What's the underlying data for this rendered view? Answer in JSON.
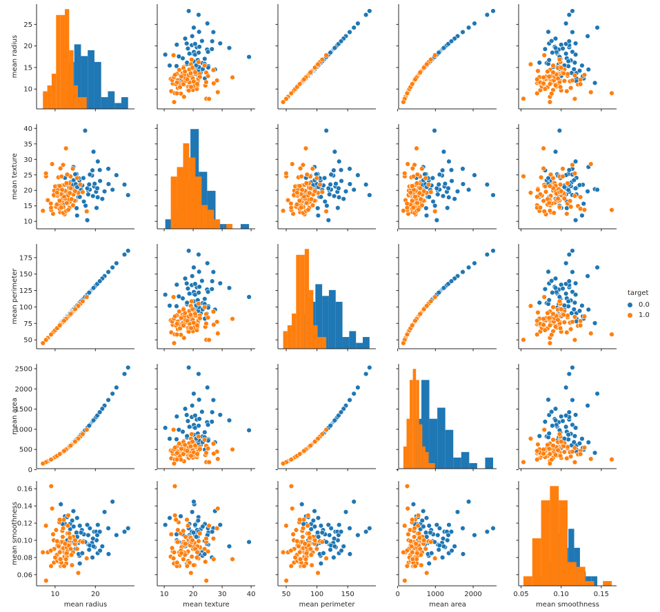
{
  "chart_data": {
    "type": "scatter",
    "kind": "pairplot",
    "grid": false,
    "hue": "target",
    "legend": {
      "title": "target",
      "placement": "right",
      "entries": [
        {
          "label": "0.0",
          "color": "#1f77b4"
        },
        {
          "label": "1.0",
          "color": "#ff7f0e"
        }
      ]
    },
    "diagonal": "histogram",
    "variables": [
      {
        "label": "mean radius",
        "range": [
          5.4,
          29.7
        ],
        "ticks": [
          10,
          15,
          20,
          25
        ],
        "xticks": [
          10,
          20
        ],
        "tick_labels": [
          "10",
          "15",
          "20",
          "25"
        ],
        "xtick_labels": [
          "10",
          "20"
        ]
      },
      {
        "label": "mean texture",
        "range": [
          7.6,
          41.4
        ],
        "ticks": [
          10,
          15,
          20,
          25,
          30,
          35,
          40
        ],
        "xticks": [
          10,
          20,
          30,
          40
        ],
        "tick_labels": [
          "10",
          "15",
          "20",
          "25",
          "30",
          "35",
          "40"
        ],
        "xtick_labels": [
          "10",
          "20",
          "30",
          "40"
        ]
      },
      {
        "label": "mean perimeter",
        "range": [
          36.5,
          195.8
        ],
        "ticks": [
          50,
          75,
          100,
          125,
          150,
          175
        ],
        "xticks": [
          50,
          100,
          150
        ],
        "tick_labels": [
          "50",
          "75",
          "100",
          "125",
          "150",
          "175"
        ],
        "xtick_labels": [
          "50",
          "100",
          "150"
        ]
      },
      {
        "label": "mean area",
        "range": [
          25,
          2620
        ],
        "ticks": [
          0,
          500,
          1000,
          1500,
          2000,
          2500
        ],
        "xticks": [
          0,
          1000,
          2000
        ],
        "tick_labels": [
          "0",
          "500",
          "1000",
          "1500",
          "2000",
          "2500"
        ],
        "xtick_labels": [
          "0",
          "1000",
          "2000"
        ]
      },
      {
        "label": "mean smoothness",
        "range": [
          0.047,
          0.169
        ],
        "ticks": [
          0.06,
          0.08,
          0.1,
          0.12,
          0.14,
          0.16
        ],
        "xticks": [
          0.05,
          0.1,
          0.15
        ],
        "tick_labels": [
          "0.06",
          "0.08",
          "0.10",
          "0.12",
          "0.14",
          "0.16"
        ],
        "xtick_labels": [
          "0.05",
          "0.10",
          "0.15"
        ]
      }
    ],
    "series": [
      {
        "name": "0.0",
        "color": "#1f77b4",
        "rows": [
          [
            17.99,
            10.38,
            118.7,
            1036,
            0.118
          ],
          [
            20.57,
            17.77,
            135.8,
            1354,
            0.085
          ],
          [
            19.69,
            21.25,
            130.0,
            1241,
            0.11
          ],
          [
            11.42,
            20.38,
            75.4,
            417,
            0.142
          ],
          [
            20.29,
            14.34,
            133.9,
            1317,
            0.1
          ],
          [
            12.45,
            15.7,
            82.2,
            496,
            0.128
          ],
          [
            18.25,
            19.98,
            120.5,
            1066,
            0.095
          ],
          [
            13.71,
            20.83,
            90.5,
            601,
            0.119
          ],
          [
            13.0,
            21.82,
            85.8,
            541,
            0.127
          ],
          [
            12.46,
            24.04,
            82.2,
            497,
            0.119
          ],
          [
            16.02,
            23.24,
            105.7,
            821,
            0.082
          ],
          [
            15.78,
            17.89,
            104.1,
            797,
            0.097
          ],
          [
            19.17,
            24.8,
            126.5,
            1176,
            0.097
          ],
          [
            15.85,
            23.95,
            104.6,
            804,
            0.084
          ],
          [
            13.73,
            22.61,
            90.6,
            603,
            0.113
          ],
          [
            14.54,
            27.54,
            96.0,
            677,
            0.134
          ],
          [
            14.68,
            20.13,
            96.9,
            690,
            0.098
          ],
          [
            16.13,
            20.68,
            106.5,
            833,
            0.117
          ],
          [
            19.81,
            22.15,
            130.7,
            1256,
            0.092
          ],
          [
            15.34,
            14.26,
            101.2,
            753,
            0.107
          ],
          [
            21.16,
            23.04,
            139.7,
            1433,
            0.088
          ],
          [
            16.65,
            21.38,
            109.9,
            887,
            0.112
          ],
          [
            17.14,
            16.4,
            113.1,
            940,
            0.107
          ],
          [
            14.58,
            21.53,
            96.2,
            680,
            0.104
          ],
          [
            18.61,
            20.25,
            122.8,
            1108,
            0.094
          ],
          [
            15.3,
            25.27,
            101.0,
            749,
            0.109
          ],
          [
            17.57,
            15.05,
            116.0,
            988,
            0.098
          ],
          [
            18.63,
            25.11,
            123.0,
            1111,
            0.114
          ],
          [
            11.84,
            18.7,
            78.1,
            449,
            0.119
          ],
          [
            17.02,
            23.98,
            112.3,
            927,
            0.099
          ],
          [
            19.27,
            26.47,
            127.2,
            1188,
            0.08
          ],
          [
            16.13,
            17.88,
            106.5,
            833,
            0.073
          ],
          [
            16.74,
            21.59,
            110.5,
            897,
            0.085
          ],
          [
            14.25,
            21.72,
            94.1,
            650,
            0.123
          ],
          [
            13.03,
            18.42,
            86.0,
            543,
            0.1
          ],
          [
            14.99,
            25.2,
            98.9,
            719,
            0.095
          ],
          [
            20.6,
            29.33,
            136.0,
            1358,
            0.118
          ],
          [
            25.22,
            24.91,
            166.5,
            2035,
            0.106
          ],
          [
            27.22,
            21.87,
            179.7,
            2371,
            0.11
          ],
          [
            28.11,
            18.47,
            185.5,
            2529,
            0.114
          ],
          [
            23.27,
            22.04,
            153.6,
            1733,
            0.084
          ],
          [
            24.25,
            20.2,
            160.1,
            1882,
            0.145
          ],
          [
            23.21,
            26.97,
            153.2,
            1724,
            0.114
          ],
          [
            22.27,
            19.67,
            147.0,
            1587,
            0.133
          ],
          [
            21.71,
            17.25,
            143.3,
            1508,
            0.093
          ],
          [
            20.18,
            19.54,
            133.2,
            1303,
            0.11
          ],
          [
            17.46,
            39.28,
            115.2,
            976,
            0.098
          ],
          [
            15.46,
            11.89,
            102.0,
            765,
            0.126
          ],
          [
            20.47,
            20.67,
            135.1,
            1341,
            0.106
          ],
          [
            18.22,
            18.7,
            120.3,
            1062,
            0.106
          ],
          [
            19.4,
            18.18,
            128.0,
            1204,
            0.102
          ],
          [
            16.46,
            20.11,
            108.6,
            867,
            0.109
          ],
          [
            15.1,
            22.02,
            99.7,
            730,
            0.09
          ],
          [
            21.09,
            26.57,
            139.2,
            1423,
            0.11
          ],
          [
            17.99,
            20.66,
            118.7,
            1036,
            0.118
          ],
          [
            14.6,
            23.29,
            96.4,
            682,
            0.116
          ],
          [
            15.5,
            21.08,
            102.3,
            769,
            0.104
          ],
          [
            18.45,
            21.91,
            121.8,
            1089,
            0.089
          ],
          [
            13.61,
            24.69,
            89.8,
            593,
            0.096
          ],
          [
            19.53,
            32.47,
            128.9,
            1221,
            0.093
          ]
        ]
      },
      {
        "name": "1.0",
        "color": "#ff7f0e",
        "rows": [
          [
            13.54,
            14.36,
            87.3,
            568,
            0.098
          ],
          [
            13.08,
            15.71,
            84.4,
            530,
            0.108
          ],
          [
            9.5,
            12.44,
            61.3,
            280,
            0.107
          ],
          [
            11.04,
            16.83,
            71.2,
            378,
            0.094
          ],
          [
            8.2,
            16.84,
            52.9,
            208,
            0.086
          ],
          [
            12.05,
            14.63,
            77.7,
            450,
            0.098
          ],
          [
            13.49,
            22.3,
            87.0,
            564,
            0.108
          ],
          [
            11.76,
            21.6,
            75.9,
            429,
            0.09
          ],
          [
            13.64,
            16.34,
            88.0,
            577,
            0.095
          ],
          [
            11.94,
            18.24,
            77.0,
            442,
            0.087
          ],
          [
            10.95,
            21.35,
            70.6,
            372,
            0.079
          ],
          [
            11.42,
            15.2,
            73.7,
            404,
            0.07
          ],
          [
            12.36,
            21.8,
            79.7,
            474,
            0.079
          ],
          [
            14.4,
            26.99,
            92.9,
            643,
            0.102
          ],
          [
            9.72,
            18.22,
            62.7,
            293,
            0.074
          ],
          [
            12.34,
            12.27,
            79.6,
            472,
            0.081
          ],
          [
            10.26,
            14.71,
            66.2,
            326,
            0.112
          ],
          [
            12.18,
            17.84,
            78.6,
            460,
            0.124
          ],
          [
            9.79,
            19.94,
            63.1,
            297,
            0.09
          ],
          [
            11.06,
            14.96,
            71.3,
            379,
            0.121
          ],
          [
            11.8,
            16.58,
            76.1,
            432,
            0.111
          ],
          [
            14.44,
            15.18,
            93.1,
            646,
            0.086
          ],
          [
            12.77,
            22.47,
            82.4,
            506,
            0.091
          ],
          [
            10.44,
            15.46,
            67.3,
            338,
            0.083
          ],
          [
            7.76,
            24.54,
            50.1,
            187,
            0.053
          ],
          [
            9.27,
            28.5,
            59.8,
            266,
            0.137
          ],
          [
            9.04,
            13.67,
            58.3,
            253,
            0.163
          ],
          [
            12.87,
            19.54,
            83.0,
            513,
            0.081
          ],
          [
            10.82,
            24.21,
            69.8,
            363,
            0.075
          ],
          [
            13.48,
            20.82,
            86.9,
            563,
            0.094
          ],
          [
            11.27,
            12.96,
            72.7,
            394,
            0.087
          ],
          [
            14.54,
            18.66,
            93.8,
            655,
            0.104
          ],
          [
            11.6,
            24.49,
            74.8,
            417,
            0.098
          ],
          [
            12.46,
            19.89,
            80.4,
            481,
            0.093
          ],
          [
            10.57,
            18.32,
            68.2,
            346,
            0.076
          ],
          [
            13.82,
            24.49,
            89.1,
            592,
            0.102
          ],
          [
            12.06,
            12.74,
            77.8,
            451,
            0.091
          ],
          [
            15.12,
            16.68,
            97.5,
            709,
            0.098
          ],
          [
            14.87,
            16.67,
            95.9,
            685,
            0.096
          ],
          [
            11.52,
            18.75,
            74.3,
            411,
            0.074
          ],
          [
            12.95,
            16.02,
            83.5,
            520,
            0.092
          ],
          [
            16.26,
            21.88,
            104.9,
            820,
            0.099
          ],
          [
            7.73,
            25.49,
            49.9,
            185,
            0.117
          ],
          [
            14.2,
            20.53,
            91.6,
            625,
            0.071
          ],
          [
            10.71,
            20.39,
            69.1,
            356,
            0.097
          ],
          [
            11.89,
            17.36,
            76.7,
            438,
            0.104
          ],
          [
            9.67,
            18.49,
            62.4,
            290,
            0.1
          ],
          [
            13.17,
            18.22,
            84.9,
            538,
            0.117
          ],
          [
            12.83,
            22.33,
            82.8,
            510,
            0.092
          ],
          [
            15.46,
            23.95,
            99.7,
            741,
            0.09
          ],
          [
            10.03,
            21.28,
            64.7,
            312,
            0.08
          ],
          [
            12.62,
            17.15,
            81.4,
            494,
            0.085
          ],
          [
            13.4,
            16.95,
            86.4,
            557,
            0.094
          ],
          [
            11.75,
            20.18,
            75.8,
            428,
            0.071
          ],
          [
            17.85,
            13.23,
            115.1,
            988,
            0.079
          ],
          [
            8.95,
            15.76,
            57.7,
            248,
            0.088
          ],
          [
            12.47,
            17.31,
            80.4,
            482,
            0.096
          ],
          [
            10.6,
            18.95,
            68.4,
            348,
            0.094
          ],
          [
            13.0,
            25.13,
            83.9,
            524,
            0.087
          ],
          [
            12.76,
            13.37,
            82.3,
            505,
            0.073
          ],
          [
            11.14,
            14.07,
            71.9,
            385,
            0.124
          ],
          [
            14.06,
            17.18,
            90.7,
            613,
            0.083
          ],
          [
            13.28,
            13.72,
            85.7,
            547,
            0.129
          ],
          [
            9.0,
            14.4,
            58.1,
            251,
            0.07
          ],
          [
            11.54,
            14.44,
            74.4,
            413,
            0.074
          ],
          [
            12.9,
            15.92,
            83.2,
            516,
            0.085
          ],
          [
            10.86,
            21.48,
            70.0,
            366,
            0.093
          ],
          [
            15.75,
            19.22,
            101.6,
            769,
            0.062
          ],
          [
            13.66,
            19.13,
            88.1,
            578,
            0.103
          ],
          [
            11.13,
            16.62,
            71.8,
            384,
            0.078
          ],
          [
            12.0,
            28.23,
            77.4,
            446,
            0.114
          ],
          [
            10.49,
            19.29,
            67.7,
            341,
            0.099
          ],
          [
            12.7,
            33.56,
            81.9,
            500,
            0.078
          ],
          [
            16.84,
            19.46,
            108.6,
            879,
            0.098
          ],
          [
            11.32,
            27.08,
            73.0,
            397,
            0.078
          ],
          [
            13.87,
            20.7,
            89.5,
            596,
            0.09
          ],
          [
            6.98,
            13.43,
            45.0,
            151,
            0.086
          ],
          [
            12.25,
            17.94,
            79.0,
            465,
            0.07
          ],
          [
            11.16,
            21.41,
            72.0,
            386,
            0.086
          ],
          [
            14.97,
            19.76,
            96.6,
            695,
            0.1
          ]
        ]
      }
    ]
  }
}
